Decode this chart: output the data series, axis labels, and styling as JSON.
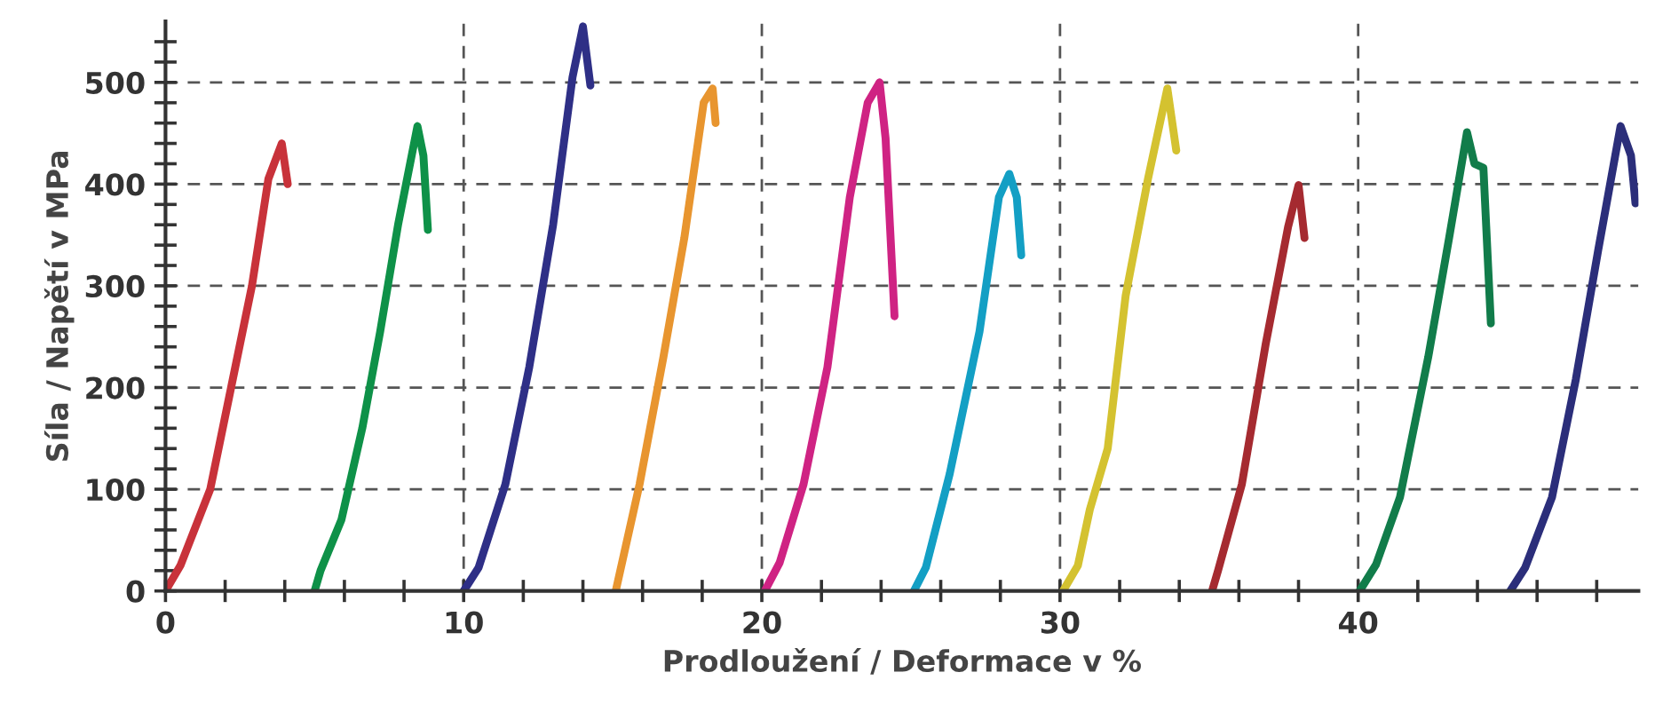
{
  "chart_data": {
    "type": "line",
    "xlabel": "Prodloužení / Deformace v %",
    "ylabel": "Síla / Napětí v MPa",
    "xlim": [
      0,
      49.4
    ],
    "ylim": [
      0,
      560
    ],
    "xticks": [
      0,
      {
        "value": 2,
        "label": null
      },
      {
        "value": 4,
        "label": null
      },
      {
        "value": 6,
        "label": null
      },
      {
        "value": 8,
        "label": null
      },
      10,
      {
        "value": 12,
        "label": null
      },
      {
        "value": 14,
        "label": null
      },
      {
        "value": 16,
        "label": null
      },
      {
        "value": 18,
        "label": null
      },
      20,
      {
        "value": 22,
        "label": null
      },
      {
        "value": 24,
        "label": null
      },
      {
        "value": 26,
        "label": null
      },
      {
        "value": 28,
        "label": null
      },
      30,
      {
        "value": 32,
        "label": null
      },
      {
        "value": 34,
        "label": null
      },
      {
        "value": 36,
        "label": null
      },
      {
        "value": 38,
        "label": null
      },
      40,
      {
        "value": 42,
        "label": null
      },
      {
        "value": 44,
        "label": null
      },
      {
        "value": 46,
        "label": null
      },
      {
        "value": 48,
        "label": null
      }
    ],
    "yticks": [
      0,
      {
        "value": 20,
        "label": null
      },
      {
        "value": 40,
        "label": null
      },
      {
        "value": 60,
        "label": null
      },
      {
        "value": 80,
        "label": null
      },
      100,
      {
        "value": 120,
        "label": null
      },
      {
        "value": 140,
        "label": null
      },
      {
        "value": 160,
        "label": null
      },
      {
        "value": 180,
        "label": null
      },
      200,
      {
        "value": 220,
        "label": null
      },
      {
        "value": 240,
        "label": null
      },
      {
        "value": 260,
        "label": null
      },
      {
        "value": 280,
        "label": null
      },
      300,
      {
        "value": 320,
        "label": null
      },
      {
        "value": 340,
        "label": null
      },
      {
        "value": 360,
        "label": null
      },
      {
        "value": 380,
        "label": null
      },
      400,
      {
        "value": 420,
        "label": null
      },
      {
        "value": 440,
        "label": null
      },
      {
        "value": 460,
        "label": null
      },
      {
        "value": 480,
        "label": null
      },
      500,
      {
        "value": 520,
        "label": null
      },
      {
        "value": 540,
        "label": null
      }
    ],
    "grid": true,
    "marker": "none",
    "line_style": "solid",
    "series": [
      {
        "color": "#c8323a",
        "x": [
          0,
          0.5,
          1.5,
          2.2,
          2.9,
          3.45,
          3.9,
          4.1
        ],
        "values": [
          0,
          25,
          100,
          200,
          300,
          405,
          440,
          400
        ]
      },
      {
        "color": "#0e9148",
        "x": [
          5.0,
          5.2,
          5.9,
          6.6,
          7.2,
          7.8,
          8.45,
          8.65,
          8.8
        ],
        "values": [
          0,
          20,
          70,
          160,
          255,
          360,
          457,
          428,
          355
        ]
      },
      {
        "color": "#2e2f86",
        "x": [
          10.0,
          10.5,
          11.4,
          12.2,
          13.0,
          13.65,
          14.0,
          14.25
        ],
        "values": [
          0,
          23,
          105,
          220,
          360,
          505,
          555,
          497
        ]
      },
      {
        "color": "#e8952f",
        "x": [
          15.1,
          15.9,
          16.7,
          17.4,
          18.05,
          18.35,
          18.45
        ],
        "values": [
          0,
          105,
          230,
          347,
          480,
          494,
          460
        ]
      },
      {
        "color": "#cf2383",
        "x": [
          20.1,
          20.6,
          21.4,
          22.2,
          22.95,
          23.55,
          23.95,
          24.15,
          24.45
        ],
        "values": [
          0,
          28,
          105,
          220,
          387,
          480,
          500,
          445,
          270
        ]
      },
      {
        "color": "#139fc4",
        "x": [
          25.1,
          25.5,
          26.3,
          27.3,
          27.95,
          28.3,
          28.55,
          28.7
        ],
        "values": [
          0,
          23,
          115,
          255,
          387,
          410,
          387,
          330
        ]
      },
      {
        "color": "#d4c230",
        "x": [
          30.1,
          30.6,
          31.0,
          31.6,
          32.2,
          32.95,
          33.6,
          33.9
        ],
        "values": [
          0,
          25,
          80,
          140,
          290,
          405,
          494,
          433
        ]
      },
      {
        "color": "#a52a30",
        "x": [
          35.1,
          35.3,
          36.1,
          36.9,
          37.65,
          38.0,
          38.2
        ],
        "values": [
          0,
          20,
          105,
          243,
          358,
          399,
          347
        ]
      },
      {
        "color": "#117c4a",
        "x": [
          40.05,
          40.6,
          41.4,
          42.35,
          43.05,
          43.65,
          43.9,
          44.2,
          44.45
        ],
        "values": [
          0,
          26,
          92,
          230,
          347,
          451,
          420,
          416,
          263
        ]
      },
      {
        "color": "#2b2e7a",
        "x": [
          45.1,
          45.6,
          46.5,
          47.3,
          48.05,
          48.8,
          49.15,
          49.3
        ],
        "values": [
          0,
          23,
          92,
          208,
          335,
          457,
          428,
          381
        ]
      }
    ]
  }
}
